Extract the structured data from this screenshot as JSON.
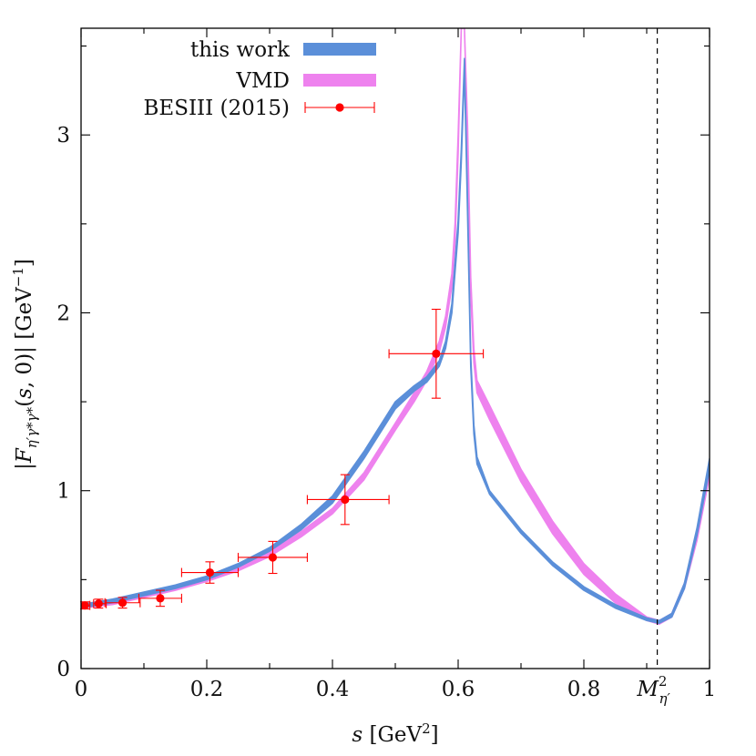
{
  "chart_data": {
    "type": "line",
    "title": "",
    "xlabel": "s [GeV²]",
    "ylabel": "|F_{η′γ*γ*}(s,0)| [GeV⁻¹]",
    "xlim": [
      0,
      1
    ],
    "ylim": [
      0,
      3.6
    ],
    "x_ticks": [
      {
        "value": 0,
        "label": "0"
      },
      {
        "value": 0.2,
        "label": "0.2"
      },
      {
        "value": 0.4,
        "label": "0.4"
      },
      {
        "value": 0.6,
        "label": "0.6"
      },
      {
        "value": 0.8,
        "label": "0.8"
      },
      {
        "value": 1,
        "label": "1"
      }
    ],
    "x_tick_special": {
      "value": 0.9168,
      "label": "M",
      "sup": "2",
      "sub": "η′"
    },
    "y_ticks": [
      {
        "value": 0,
        "label": "0"
      },
      {
        "value": 1,
        "label": "1"
      },
      {
        "value": 2,
        "label": "2"
      },
      {
        "value": 3,
        "label": "3"
      }
    ],
    "y_minor_ticks": [
      0.5,
      1.5,
      2.5,
      3.5
    ],
    "x_minor_ticks": [
      0.1,
      0.3,
      0.5,
      0.7,
      0.9
    ],
    "vline": {
      "x": 0.9168,
      "style": "dashed",
      "color": "#000000"
    },
    "grid": false,
    "legend_position": "top-left",
    "series": [
      {
        "name": "this work",
        "kind": "band",
        "color": "#5b8fd9",
        "x": [
          0,
          0.05,
          0.1,
          0.15,
          0.2,
          0.25,
          0.3,
          0.35,
          0.4,
          0.45,
          0.5,
          0.53,
          0.55,
          0.57,
          0.58,
          0.59,
          0.6,
          0.605,
          0.61,
          0.615,
          0.62,
          0.625,
          0.63,
          0.65,
          0.7,
          0.75,
          0.8,
          0.85,
          0.9,
          0.92,
          0.94,
          0.96,
          0.98,
          1.0
        ],
        "lower": [
          0.34,
          0.37,
          0.41,
          0.45,
          0.5,
          0.57,
          0.66,
          0.78,
          0.93,
          1.18,
          1.46,
          1.56,
          1.61,
          1.7,
          1.8,
          2.0,
          2.45,
          2.85,
          3.37,
          2.55,
          1.7,
          1.32,
          1.15,
          0.98,
          0.76,
          0.58,
          0.44,
          0.34,
          0.27,
          0.255,
          0.29,
          0.45,
          0.75,
          1.12
        ],
        "upper": [
          0.36,
          0.39,
          0.43,
          0.47,
          0.52,
          0.59,
          0.68,
          0.81,
          0.97,
          1.22,
          1.5,
          1.59,
          1.64,
          1.73,
          1.84,
          2.05,
          2.52,
          2.92,
          3.43,
          2.62,
          1.76,
          1.37,
          1.19,
          1.0,
          0.78,
          0.6,
          0.46,
          0.36,
          0.285,
          0.27,
          0.31,
          0.48,
          0.79,
          1.18
        ]
      },
      {
        "name": "VMD",
        "kind": "band",
        "color": "#ee82ee",
        "x": [
          0,
          0.05,
          0.1,
          0.15,
          0.2,
          0.25,
          0.3,
          0.35,
          0.4,
          0.45,
          0.5,
          0.53,
          0.55,
          0.57,
          0.58,
          0.59,
          0.595,
          0.6,
          0.605,
          0.61,
          0.615,
          0.62,
          0.625,
          0.63,
          0.65,
          0.7,
          0.75,
          0.8,
          0.85,
          0.9,
          0.92,
          0.94,
          0.96,
          0.98,
          1.0
        ],
        "lower": [
          0.34,
          0.36,
          0.4,
          0.44,
          0.49,
          0.55,
          0.63,
          0.74,
          0.87,
          1.06,
          1.34,
          1.5,
          1.62,
          1.78,
          1.92,
          2.15,
          2.4,
          2.9,
          3.6,
          3.6,
          2.95,
          2.1,
          1.72,
          1.55,
          1.4,
          1.05,
          0.76,
          0.53,
          0.37,
          0.27,
          0.25,
          0.29,
          0.45,
          0.72,
          1.08
        ],
        "upper": [
          0.36,
          0.38,
          0.42,
          0.46,
          0.51,
          0.57,
          0.66,
          0.77,
          0.9,
          1.1,
          1.38,
          1.55,
          1.67,
          1.84,
          1.98,
          2.22,
          2.5,
          3.0,
          3.6,
          3.6,
          3.05,
          2.2,
          1.8,
          1.62,
          1.48,
          1.12,
          0.83,
          0.59,
          0.42,
          0.29,
          0.27,
          0.31,
          0.48,
          0.76,
          1.13
        ]
      },
      {
        "name": "BESIII (2015)",
        "kind": "points",
        "color": "#ff0000",
        "x": [
          0.006,
          0.028,
          0.066,
          0.126,
          0.205,
          0.305,
          0.42,
          0.565
        ],
        "y": [
          0.355,
          0.365,
          0.37,
          0.395,
          0.54,
          0.625,
          0.95,
          1.77
        ],
        "xerr_low": [
          0.006,
          0.008,
          0.028,
          0.034,
          0.045,
          0.055,
          0.06,
          0.075
        ],
        "xerr_high": [
          0.008,
          0.012,
          0.028,
          0.034,
          0.045,
          0.055,
          0.07,
          0.075
        ],
        "yerr": [
          0.02,
          0.025,
          0.03,
          0.045,
          0.06,
          0.09,
          0.14,
          0.25
        ]
      }
    ]
  }
}
